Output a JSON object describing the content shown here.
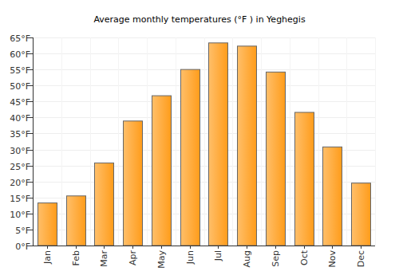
{
  "chart_data": {
    "type": "bar",
    "title": "Average monthly temperatures (°F ) in Yeghegis",
    "categories": [
      "Jan",
      "Feb",
      "Mar",
      "Apr",
      "May",
      "Jun",
      "Jul",
      "Aug",
      "Sep",
      "Oct",
      "Nov",
      "Dec"
    ],
    "values": [
      13.3,
      15.5,
      25.8,
      38.9,
      46.8,
      55.0,
      63.3,
      62.3,
      54.2,
      41.6,
      30.8,
      19.5
    ],
    "color": "#ff9c1a",
    "ylim": [
      0,
      65
    ],
    "yticks": [
      {
        "value": 0,
        "label": "0°F"
      },
      {
        "value": 5,
        "label": "5°F"
      },
      {
        "value": 10,
        "label": "10°F"
      },
      {
        "value": 15,
        "label": "15°F"
      },
      {
        "value": 20,
        "label": "20°F"
      },
      {
        "value": 25,
        "label": "25°F"
      },
      {
        "value": 30,
        "label": "30°F"
      },
      {
        "value": 35,
        "label": "35°F"
      },
      {
        "value": 40,
        "label": "40°F"
      },
      {
        "value": 45,
        "label": "45°F"
      },
      {
        "value": 50,
        "label": "50°F"
      },
      {
        "value": 55,
        "label": "55°F"
      },
      {
        "value": 60,
        "label": "60°F"
      },
      {
        "value": 65,
        "label": "65°F"
      }
    ],
    "grid": true
  }
}
